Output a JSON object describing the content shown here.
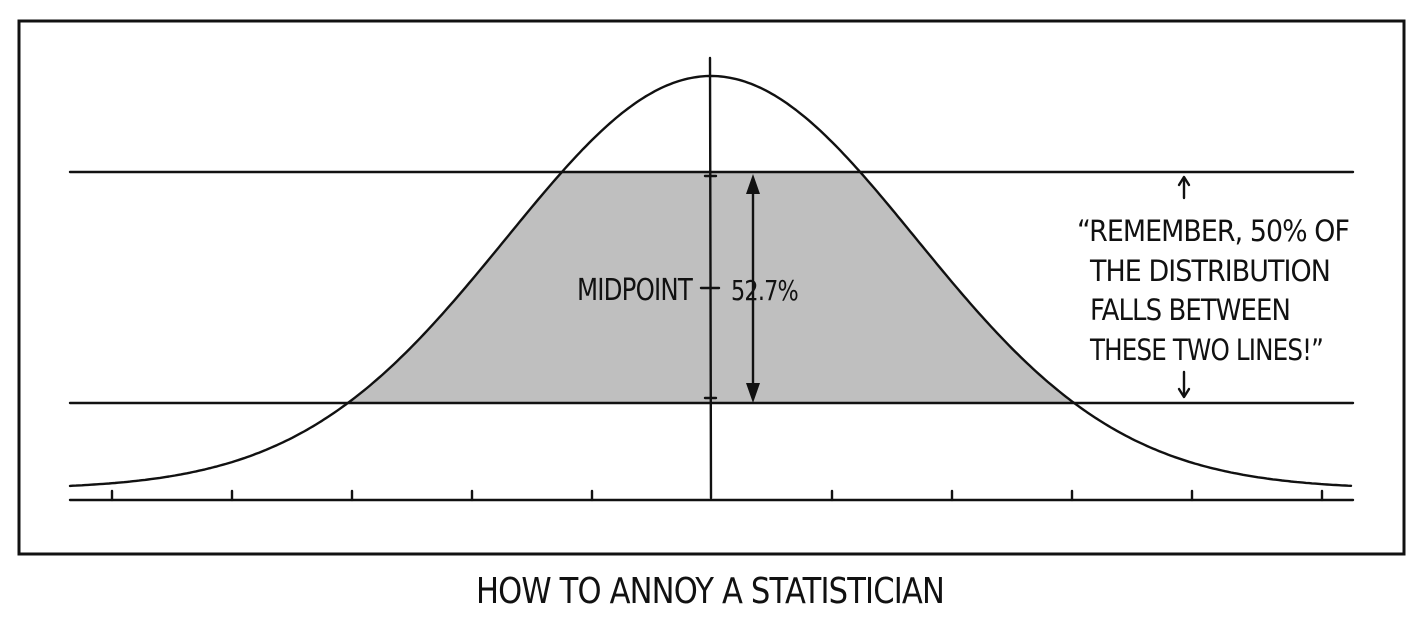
{
  "caption": "HOW TO ANNOY A STATISTICIAN",
  "labels": {
    "midpoint": "MIDPOINT",
    "percent": "52.7%"
  },
  "quote_lines": [
    "“REMEMBER, 50% OF",
    "THE DISTRIBUTION",
    "FALLS BETWEEN",
    "THESE TWO LINES!”"
  ],
  "colors": {
    "ink": "#111111",
    "shade": "#bfbfbf",
    "background": "#ffffff"
  }
}
